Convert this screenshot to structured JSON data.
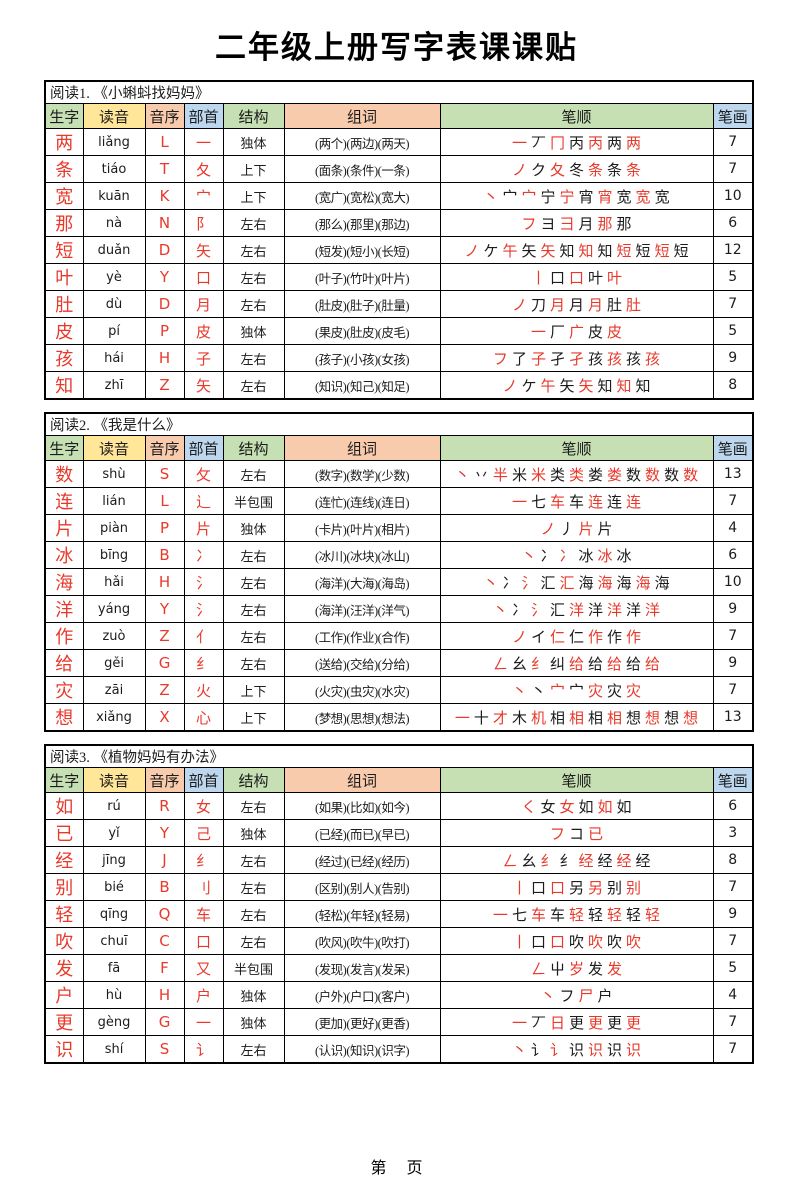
{
  "page": {
    "title": "二年级上册写字表课课贴",
    "footer": "第　 页"
  },
  "colors": {
    "red": "#e8392b",
    "header_green": "#c6e0b4",
    "header_yellow": "#ffe699",
    "header_peach": "#f8cbad",
    "header_blue": "#bdd7ee"
  },
  "columns": [
    "生字",
    "读音",
    "音序",
    "部首",
    "结构",
    "组词",
    "笔顺",
    "笔画"
  ],
  "header_colors": [
    "#c6e0b4",
    "#ffe699",
    "#f8cbad",
    "#bdd7ee",
    "#c6e0b4",
    "#f8cbad",
    "#c6e0b4",
    "#bdd7ee"
  ],
  "tables": [
    {
      "section": "阅读1. 《小蝌蚪找妈妈》",
      "rows": [
        {
          "char": "两",
          "pinyin": "liǎng",
          "initial": "L",
          "radical": "一",
          "structure": "独体",
          "words": "(两个)(两边)(两天)",
          "strokes": "一 丆 冂 丙 丙 两 两",
          "count": "7"
        },
        {
          "char": "条",
          "pinyin": "tiáo",
          "initial": "T",
          "radical": "夂",
          "structure": "上下",
          "words": "(面条)(条件)(一条)",
          "strokes": "ノ ク 夂 冬 条 条 条",
          "count": "7"
        },
        {
          "char": "宽",
          "pinyin": "kuān",
          "initial": "K",
          "radical": "宀",
          "structure": "上下",
          "words": "(宽广)(宽松)(宽大)",
          "strokes": "丶 宀 宀 宁 宁 宵 宵 宽 宽 宽",
          "count": "10"
        },
        {
          "char": "那",
          "pinyin": "nà",
          "initial": "N",
          "radical": "阝",
          "structure": "左右",
          "words": "(那么)(那里)(那边)",
          "strokes": "フ ヨ 彐 月 那 那",
          "count": "6"
        },
        {
          "char": "短",
          "pinyin": "duǎn",
          "initial": "D",
          "radical": "矢",
          "structure": "左右",
          "words": "(短发)(短小)(长短)",
          "strokes": "ノ ケ 午 矢 矢 知 知 知 短 短 短 短",
          "count": "12"
        },
        {
          "char": "叶",
          "pinyin": "yè",
          "initial": "Y",
          "radical": "口",
          "structure": "左右",
          "words": "(叶子)(竹叶)(叶片)",
          "strokes": "丨 口 口 叶 叶",
          "count": "5"
        },
        {
          "char": "肚",
          "pinyin": "dù",
          "initial": "D",
          "radical": "月",
          "structure": "左右",
          "words": "(肚皮)(肚子)(肚量)",
          "strokes": "ノ 刀 月 月 月 肚 肚",
          "count": "7"
        },
        {
          "char": "皮",
          "pinyin": "pí",
          "initial": "P",
          "radical": "皮",
          "structure": "独体",
          "words": "(果皮)(肚皮)(皮毛)",
          "strokes": "一 厂 广 皮 皮",
          "count": "5"
        },
        {
          "char": "孩",
          "pinyin": "hái",
          "initial": "H",
          "radical": "子",
          "structure": "左右",
          "words": "(孩子)(小孩)(女孩)",
          "strokes": "フ 了 子 孑 孑 孩 孩 孩 孩",
          "count": "9"
        },
        {
          "char": "知",
          "pinyin": "zhī",
          "initial": "Z",
          "radical": "矢",
          "structure": "左右",
          "words": "(知识)(知己)(知足)",
          "strokes": "ノ ケ 午 矢 矢 知 知 知",
          "count": "8"
        }
      ]
    },
    {
      "section": "阅读2. 《我是什么》",
      "rows": [
        {
          "char": "数",
          "pinyin": "shù",
          "initial": "S",
          "radical": "攵",
          "structure": "左右",
          "words": "(数字)(数学)(少数)",
          "strokes": "丶 丷 半 米 米 类 类 娄 娄 数 数 数 数",
          "count": "13"
        },
        {
          "char": "连",
          "pinyin": "lián",
          "initial": "L",
          "radical": "辶",
          "structure": "半包围",
          "words": "(连忙)(连线)(连日)",
          "strokes": "一 七 车 车 连 连 连",
          "count": "7"
        },
        {
          "char": "片",
          "pinyin": "piàn",
          "initial": "P",
          "radical": "片",
          "structure": "独体",
          "words": "(卡片)(叶片)(相片)",
          "strokes": "ノ 丿 片 片",
          "count": "4"
        },
        {
          "char": "冰",
          "pinyin": "bīng",
          "initial": "B",
          "radical": "冫",
          "structure": "左右",
          "words": "(冰川)(冰块)(冰山)",
          "strokes": "丶 冫 冫 冰 冰 冰",
          "count": "6"
        },
        {
          "char": "海",
          "pinyin": "hǎi",
          "initial": "H",
          "radical": "氵",
          "structure": "左右",
          "words": "(海洋)(大海)(海岛)",
          "strokes": "丶 冫 氵 汇 汇 海 海 海 海 海",
          "count": "10"
        },
        {
          "char": "洋",
          "pinyin": "yáng",
          "initial": "Y",
          "radical": "氵",
          "structure": "左右",
          "words": "(海洋)(汪洋)(洋气)",
          "strokes": "丶 冫 氵 汇 洋 洋 洋 洋 洋",
          "count": "9"
        },
        {
          "char": "作",
          "pinyin": "zuò",
          "initial": "Z",
          "radical": "亻",
          "structure": "左右",
          "words": "(工作)(作业)(合作)",
          "strokes": "ノ イ 仁 仁 作 作 作",
          "count": "7"
        },
        {
          "char": "给",
          "pinyin": "gěi",
          "initial": "G",
          "radical": "纟",
          "structure": "左右",
          "words": "(送给)(交给)(分给)",
          "strokes": "ㄥ 幺 纟 纠 给 给 给 给 给",
          "count": "9"
        },
        {
          "char": "灾",
          "pinyin": "zāi",
          "initial": "Z",
          "radical": "火",
          "structure": "上下",
          "words": "(火灾)(虫灾)(水灾)",
          "strokes": "丶 丶 宀 宀 灾 灾 灾",
          "count": "7"
        },
        {
          "char": "想",
          "pinyin": "xiǎng",
          "initial": "X",
          "radical": "心",
          "structure": "上下",
          "words": "(梦想)(思想)(想法)",
          "strokes": "一 十 才 木 机 相 相 相 相 想 想 想 想",
          "count": "13"
        }
      ]
    },
    {
      "section": "阅读3. 《植物妈妈有办法》",
      "rows": [
        {
          "char": "如",
          "pinyin": "rú",
          "initial": "R",
          "radical": "女",
          "structure": "左右",
          "words": "(如果)(比如)(如今)",
          "strokes": "く 女 女 如 如 如",
          "count": "6"
        },
        {
          "char": "已",
          "pinyin": "yǐ",
          "initial": "Y",
          "radical": "己",
          "structure": "独体",
          "words": "(已经)(而已)(早已)",
          "strokes": "フ コ 已",
          "count": "3"
        },
        {
          "char": "经",
          "pinyin": "jīng",
          "initial": "J",
          "radical": "纟",
          "structure": "左右",
          "words": "(经过)(已经)(经历)",
          "strokes": "ㄥ 幺 纟 纟 经 经 经 经",
          "count": "8"
        },
        {
          "char": "别",
          "pinyin": "bié",
          "initial": "B",
          "radical": "刂",
          "structure": "左右",
          "words": "(区别)(别人)(告别)",
          "strokes": "丨 口 口 另 另 别 别",
          "count": "7"
        },
        {
          "char": "轻",
          "pinyin": "qīng",
          "initial": "Q",
          "radical": "车",
          "structure": "左右",
          "words": "(轻松)(年轻)(轻易)",
          "strokes": "一 七 车 车 轻 轻 轻 轻 轻",
          "count": "9"
        },
        {
          "char": "吹",
          "pinyin": "chuī",
          "initial": "C",
          "radical": "口",
          "structure": "左右",
          "words": "(吹风)(吹牛)(吹打)",
          "strokes": "丨 口 口 吹 吹 吹 吹",
          "count": "7"
        },
        {
          "char": "发",
          "pinyin": "fā",
          "initial": "F",
          "radical": "又",
          "structure": "半包围",
          "words": "(发现)(发言)(发呆)",
          "strokes": "ㄥ 屮 岁 发 发",
          "count": "5"
        },
        {
          "char": "户",
          "pinyin": "hù",
          "initial": "H",
          "radical": "户",
          "structure": "独体",
          "words": "(户外)(户口)(客户)",
          "strokes": "丶 フ 尸 户",
          "count": "4"
        },
        {
          "char": "更",
          "pinyin": "gèng",
          "initial": "G",
          "radical": "一",
          "structure": "独体",
          "words": "(更加)(更好)(更香)",
          "strokes": "一 丆 日 更 更 更 更",
          "count": "7"
        },
        {
          "char": "识",
          "pinyin": "shí",
          "initial": "S",
          "radical": "讠",
          "structure": "左右",
          "words": "(认识)(知识)(识字)",
          "strokes": "丶 讠 讠 识 识 识 识",
          "count": "7"
        }
      ]
    }
  ]
}
